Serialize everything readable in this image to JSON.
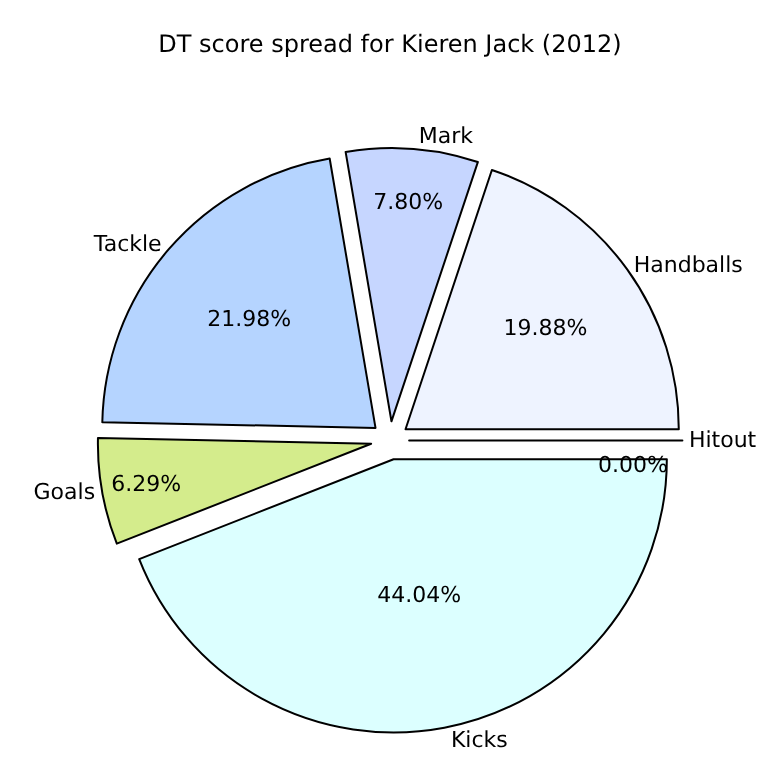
{
  "chart_data": {
    "type": "pie",
    "title": "DT score spread for Kieren Jack (2012)",
    "categories": [
      "Hitout",
      "Kicks",
      "Goals",
      "Tackle",
      "Mark",
      "Handballs"
    ],
    "values": [
      0,
      44.04,
      6.29,
      21.98,
      7.8,
      19.88
    ],
    "value_labels": [
      "0.00%",
      "44.04%",
      "6.29%",
      "21.98%",
      "7.80%",
      "19.88%"
    ],
    "colors": [
      "#ffffff",
      "#dcffff",
      "#d4ec8c",
      "#b5d4ff",
      "#c6d6ff",
      "#eef3ff"
    ],
    "legend": false
  }
}
